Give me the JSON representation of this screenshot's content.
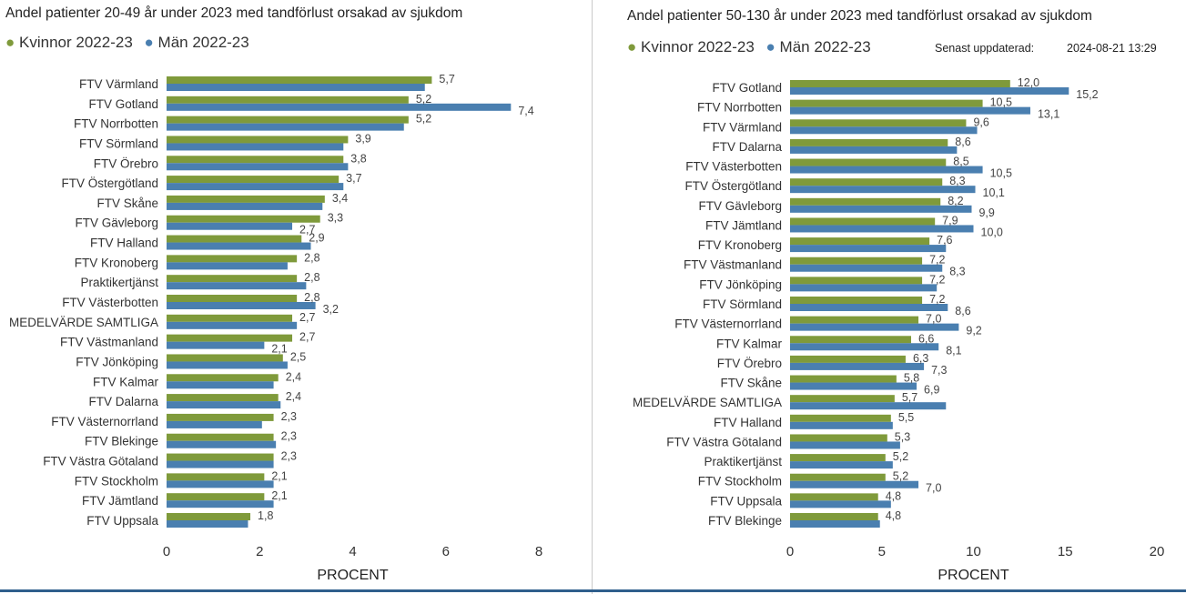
{
  "colors": {
    "women": "#7f9a3b",
    "men": "#4a7fb0"
  },
  "updated": {
    "label": "Senast uppdaterad:",
    "value": "2024-08-21 13:29"
  },
  "chart_data": [
    {
      "type": "bar",
      "orientation": "horizontal",
      "title": "Andel patienter 20-49 år under 2023 med tandförlust orsakad av sjukdom",
      "xlabel": "PROCENT",
      "xlim": [
        0,
        8
      ],
      "xticks": [
        0,
        2,
        4,
        6,
        8
      ],
      "legend_position": "top-left",
      "categories": [
        "FTV Värmland",
        "FTV Gotland",
        "FTV Norrbotten",
        "FTV Sörmland",
        "FTV Örebro",
        "FTV Östergötland",
        "FTV Skåne",
        "FTV Gävleborg",
        "FTV Halland",
        "FTV Kronoberg",
        "Praktikertjänst",
        "FTV Västerbotten",
        "MEDELVÄRDE SAMTLIGA",
        "FTV Västmanland",
        "FTV Jönköping",
        "FTV Kalmar",
        "FTV Dalarna",
        "FTV Västernorrland",
        "FTV Blekinge",
        "FTV Västra Götaland",
        "FTV Stockholm",
        "FTV Jämtland",
        "FTV Uppsala"
      ],
      "series": [
        {
          "name": "Kvinnor 2022-23",
          "values": [
            5.7,
            5.2,
            5.2,
            3.9,
            3.8,
            3.7,
            3.4,
            3.3,
            2.9,
            2.8,
            2.8,
            2.8,
            2.7,
            2.7,
            2.5,
            2.4,
            2.4,
            2.3,
            2.3,
            2.3,
            2.1,
            2.1,
            1.8
          ]
        },
        {
          "name": "Män 2022-23",
          "values": [
            5.55,
            7.4,
            5.1,
            3.8,
            3.9,
            3.8,
            3.35,
            2.7,
            3.1,
            2.6,
            3.0,
            3.2,
            2.8,
            2.1,
            2.6,
            2.3,
            2.45,
            2.05,
            2.35,
            2.3,
            2.3,
            2.3,
            1.75
          ]
        }
      ],
      "labels": {
        "Kvinnor 2022-23": [
          "5,7",
          "5,2",
          "5,2",
          "3,9",
          "3,8",
          "3,7",
          "3,4",
          "3,3",
          "2,9",
          "2,8",
          "2,8",
          "2,8",
          "2,7",
          "2,7",
          "2,5",
          "2,4",
          "2,4",
          "2,3",
          "2,3",
          "2,3",
          "2,1",
          "2,1",
          "1,8"
        ],
        "Män 2022-23": [
          "",
          "7,4",
          "",
          "",
          "",
          "",
          "",
          "2,7",
          "",
          "",
          "",
          "3,2",
          "",
          "2,1",
          "",
          "",
          "",
          "",
          "",
          "",
          "",
          "",
          ""
        ]
      }
    },
    {
      "type": "bar",
      "orientation": "horizontal",
      "title": "Andel patienter 50-130 år under 2023 med tandförlust orsakad av sjukdom",
      "xlabel": "PROCENT",
      "xlim": [
        0,
        20
      ],
      "xticks": [
        0,
        5,
        10,
        15,
        20
      ],
      "legend_position": "top-left",
      "categories": [
        "FTV Gotland",
        "FTV Norrbotten",
        "FTV Värmland",
        "FTV Dalarna",
        "FTV Västerbotten",
        "FTV Östergötland",
        "FTV Gävleborg",
        "FTV Jämtland",
        "FTV Kronoberg",
        "FTV Västmanland",
        "FTV Jönköping",
        "FTV Sörmland",
        "FTV Västernorrland",
        "FTV Kalmar",
        "FTV Örebro",
        "FTV Skåne",
        "MEDELVÄRDE SAMTLIGA",
        "FTV Halland",
        "FTV Västra Götaland",
        "Praktikertjänst",
        "FTV Stockholm",
        "FTV Uppsala",
        "FTV Blekinge"
      ],
      "series": [
        {
          "name": "Kvinnor 2022-23",
          "values": [
            12.0,
            10.5,
            9.6,
            8.6,
            8.5,
            8.3,
            8.2,
            7.9,
            7.6,
            7.2,
            7.2,
            7.2,
            7.0,
            6.6,
            6.3,
            5.8,
            5.7,
            5.5,
            5.3,
            5.2,
            5.2,
            4.8,
            4.8
          ]
        },
        {
          "name": "Män 2022-23",
          "values": [
            15.2,
            13.1,
            10.2,
            9.1,
            10.5,
            10.1,
            9.9,
            10.0,
            8.5,
            8.3,
            8.0,
            8.6,
            9.2,
            8.1,
            7.3,
            6.9,
            8.5,
            5.6,
            6.0,
            5.6,
            7.0,
            5.5,
            4.9
          ]
        }
      ],
      "labels": {
        "Kvinnor 2022-23": [
          "12,0",
          "10,5",
          "9,6",
          "8,6",
          "8,5",
          "8,3",
          "8,2",
          "7,9",
          "7,6",
          "7,2",
          "7,2",
          "7,2",
          "7,0",
          "6,6",
          "6,3",
          "5,8",
          "5,7",
          "5,5",
          "5,3",
          "5,2",
          "5,2",
          "4,8",
          "4,8"
        ],
        "Män 2022-23": [
          "15,2",
          "13,1",
          "",
          "",
          "10,5",
          "10,1",
          "9,9",
          "10,0",
          "",
          "8,3",
          "",
          "8,6",
          "9,2",
          "8,1",
          "7,3",
          "6,9",
          "",
          "",
          "",
          "",
          "7,0",
          "",
          ""
        ]
      }
    }
  ]
}
